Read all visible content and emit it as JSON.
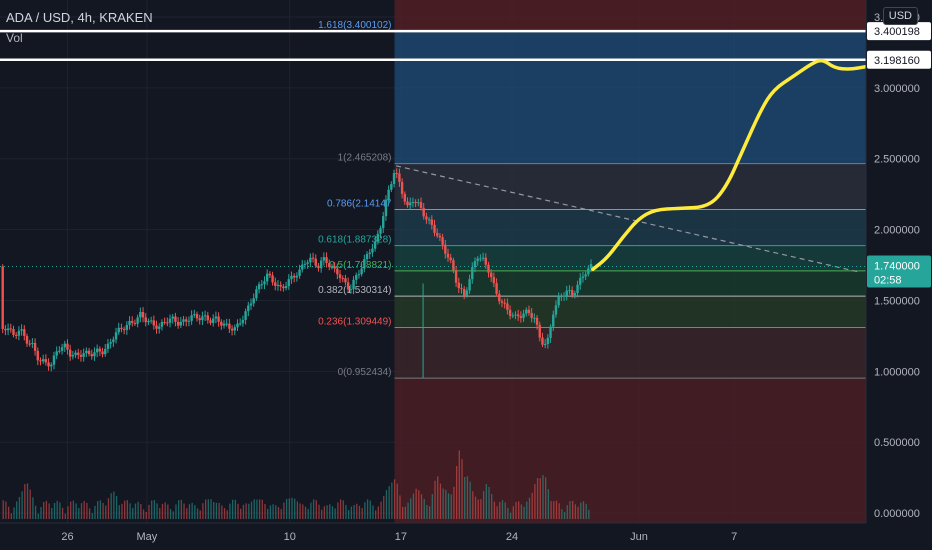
{
  "header": {
    "symbol_line": "ADA / USD, 4h, KRAKEN",
    "indicator": "Vol",
    "currency_button": "USD"
  },
  "colors": {
    "bg": "#131722",
    "grid": "#1f2330",
    "up": "#26a69a",
    "down": "#ef5350",
    "drawing": "#ffeb3b",
    "price_badge": "#26a69a",
    "level_line": "#ffffff",
    "fib_upper_fill": "#1e4d78",
    "fib_lower_fill": "#5a1f24"
  },
  "chart_data": {
    "type": "candlestick",
    "title": "ADA / USD, 4h, KRAKEN",
    "y_axis": {
      "ticks": [
        "3.500000",
        "3.000000",
        "2.500000",
        "2.000000",
        "1.500000",
        "1.000000",
        "0.500000",
        "0.000000"
      ],
      "tick_values": [
        3.5,
        3.0,
        2.5,
        2.0,
        1.5,
        1.0,
        0.5,
        0.0
      ],
      "range": [
        -0.07,
        3.62
      ]
    },
    "x_axis": {
      "ticks": [
        "26",
        "May",
        "10",
        "17",
        "24",
        "Jun",
        "7"
      ],
      "tick_days": [
        1,
        6,
        15,
        22,
        29,
        37,
        43
      ],
      "range_days": [
        -3.25,
        51.3
      ],
      "note_day0": "Apr 25"
    },
    "current_price": {
      "value": 1.74,
      "label": "1.740000",
      "countdown": "02:58"
    },
    "horizontal_levels": [
      {
        "value": 3.400198,
        "label": "3.400198"
      },
      {
        "value": 3.19816,
        "label": "3.198160"
      }
    ],
    "fibonacci": {
      "start_day": 21.6,
      "levels": [
        {
          "ratio": "1.618",
          "value": 3.400102,
          "label": "1.618(3.400102)",
          "color": "#5b9cf6"
        },
        {
          "ratio": "1",
          "value": 2.465208,
          "label": "1(2.465208)",
          "color": "#787b86"
        },
        {
          "ratio": "0.786",
          "value": 2.14147,
          "label": "0.786(2.14147",
          "color": "#5b9cf6"
        },
        {
          "ratio": "0.618",
          "value": 1.887328,
          "label": "0.618(1.887328)",
          "color": "#26a69a"
        },
        {
          "ratio": "0.5",
          "value": 1.708821,
          "label": "0.5(1.708821)",
          "color": "#4caf50"
        },
        {
          "ratio": "0.382",
          "value": 1.530314,
          "label": "0.382(1.530314)",
          "color": "#b2b5be"
        },
        {
          "ratio": "0.236",
          "value": 1.309449,
          "label": "0.236(1.309449)",
          "color": "#ef5350"
        },
        {
          "ratio": "0",
          "value": 0.952434,
          "label": "0(0.952434)",
          "color": "#787b86"
        }
      ]
    },
    "trendline": {
      "from": [
        21.7,
        2.45
      ],
      "to": [
        50.9,
        1.7
      ]
    },
    "projection_path": [
      [
        34.1,
        1.72
      ],
      [
        35.0,
        1.8
      ],
      [
        36.0,
        1.95
      ],
      [
        37.0,
        2.08
      ],
      [
        38.0,
        2.14
      ],
      [
        39.5,
        2.15
      ],
      [
        41.4,
        2.16
      ],
      [
        42.5,
        2.3
      ],
      [
        43.5,
        2.55
      ],
      [
        44.7,
        2.85
      ],
      [
        45.5,
        2.99
      ],
      [
        46.7,
        3.08
      ],
      [
        48.0,
        3.18
      ],
      [
        48.6,
        3.2
      ],
      [
        49.3,
        3.14
      ],
      [
        50.3,
        3.13
      ],
      [
        51.3,
        3.15
      ]
    ],
    "price_series": [
      [
        -3.2,
        1.28
      ],
      [
        -2.8,
        1.32
      ],
      [
        -2.4,
        1.25
      ],
      [
        -2.0,
        1.3
      ],
      [
        -1.6,
        1.22
      ],
      [
        -1.2,
        1.18
      ],
      [
        -0.8,
        1.08
      ],
      [
        -0.4,
        1.06
      ],
      [
        0.0,
        1.05
      ],
      [
        0.4,
        1.16
      ],
      [
        0.8,
        1.18
      ],
      [
        1.2,
        1.12
      ],
      [
        1.6,
        1.11
      ],
      [
        2.0,
        1.13
      ],
      [
        2.4,
        1.12
      ],
      [
        2.8,
        1.14
      ],
      [
        3.2,
        1.14
      ],
      [
        3.6,
        1.18
      ],
      [
        4.0,
        1.27
      ],
      [
        4.4,
        1.3
      ],
      [
        4.8,
        1.33
      ],
      [
        5.2,
        1.35
      ],
      [
        5.6,
        1.4
      ],
      [
        6.0,
        1.36
      ],
      [
        6.4,
        1.33
      ],
      [
        6.8,
        1.31
      ],
      [
        7.2,
        1.36
      ],
      [
        7.6,
        1.37
      ],
      [
        8.0,
        1.34
      ],
      [
        8.4,
        1.35
      ],
      [
        8.8,
        1.39
      ],
      [
        9.2,
        1.38
      ],
      [
        9.6,
        1.38
      ],
      [
        10.0,
        1.36
      ],
      [
        10.4,
        1.37
      ],
      [
        10.8,
        1.33
      ],
      [
        11.2,
        1.31
      ],
      [
        11.6,
        1.3
      ],
      [
        12.0,
        1.37
      ],
      [
        12.4,
        1.45
      ],
      [
        12.8,
        1.55
      ],
      [
        13.2,
        1.62
      ],
      [
        13.6,
        1.68
      ],
      [
        14.0,
        1.63
      ],
      [
        14.4,
        1.58
      ],
      [
        14.8,
        1.62
      ],
      [
        15.2,
        1.67
      ],
      [
        15.6,
        1.7
      ],
      [
        16.0,
        1.78
      ],
      [
        16.4,
        1.79
      ],
      [
        16.8,
        1.74
      ],
      [
        17.2,
        1.8
      ],
      [
        17.6,
        1.73
      ],
      [
        18.0,
        1.7
      ],
      [
        18.4,
        1.63
      ],
      [
        18.8,
        1.58
      ],
      [
        19.2,
        1.67
      ],
      [
        19.6,
        1.75
      ],
      [
        20.0,
        1.85
      ],
      [
        20.4,
        1.9
      ],
      [
        20.8,
        2.06
      ],
      [
        21.2,
        2.26
      ],
      [
        21.6,
        2.42
      ],
      [
        22.0,
        2.3
      ],
      [
        22.4,
        2.15
      ],
      [
        22.8,
        2.22
      ],
      [
        23.2,
        2.16
      ],
      [
        23.6,
        2.08
      ],
      [
        24.0,
        2.02
      ],
      [
        24.4,
        1.94
      ],
      [
        24.8,
        1.85
      ],
      [
        25.2,
        1.75
      ],
      [
        25.6,
        1.6
      ],
      [
        26.0,
        1.53
      ],
      [
        26.4,
        1.68
      ],
      [
        26.8,
        1.82
      ],
      [
        27.2,
        1.78
      ],
      [
        27.6,
        1.7
      ],
      [
        28.0,
        1.55
      ],
      [
        28.4,
        1.48
      ],
      [
        28.8,
        1.42
      ],
      [
        29.2,
        1.38
      ],
      [
        29.6,
        1.4
      ],
      [
        30.0,
        1.42
      ],
      [
        30.4,
        1.38
      ],
      [
        30.8,
        1.22
      ],
      [
        31.2,
        1.18
      ],
      [
        31.6,
        1.42
      ],
      [
        32.0,
        1.52
      ],
      [
        32.4,
        1.57
      ],
      [
        32.8,
        1.54
      ],
      [
        33.2,
        1.62
      ],
      [
        33.6,
        1.7
      ],
      [
        34.0,
        1.74
      ]
    ],
    "volume_days": [
      [
        -1.6,
        0.24
      ],
      [
        3.9,
        0.18
      ],
      [
        10.0,
        0.13
      ],
      [
        12.8,
        0.13
      ],
      [
        15.2,
        0.14
      ],
      [
        21.2,
        0.19
      ],
      [
        21.6,
        0.26
      ],
      [
        23.0,
        0.2
      ],
      [
        24.3,
        0.28
      ],
      [
        24.7,
        0.2
      ],
      [
        25.7,
        0.45
      ],
      [
        26.2,
        0.28
      ],
      [
        27.4,
        0.23
      ],
      [
        30.6,
        0.26
      ],
      [
        31.0,
        0.29
      ]
    ]
  }
}
